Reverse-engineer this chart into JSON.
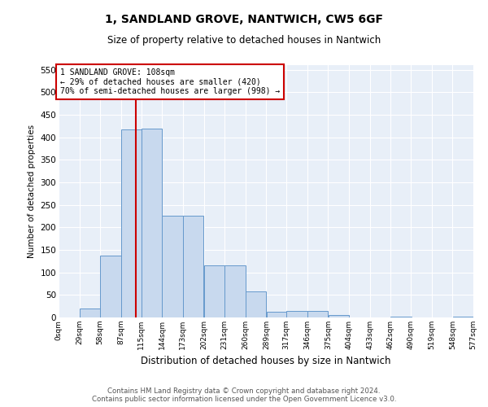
{
  "title": "1, SANDLAND GROVE, NANTWICH, CW5 6GF",
  "subtitle": "Size of property relative to detached houses in Nantwich",
  "xlabel": "Distribution of detached houses by size in Nantwich",
  "ylabel": "Number of detached properties",
  "bar_color": "#c8d9ee",
  "bar_edge_color": "#6699cc",
  "background_color": "#e8eff8",
  "grid_color": "#ffffff",
  "annotation_line_color": "#cc0000",
  "annotation_box_color": "#cc0000",
  "bins": [
    0,
    29,
    58,
    87,
    115,
    144,
    173,
    202,
    231,
    260,
    289,
    317,
    346,
    375,
    404,
    433,
    462,
    490,
    519,
    548,
    577
  ],
  "bin_labels": [
    "0sqm",
    "29sqm",
    "58sqm",
    "87sqm",
    "115sqm",
    "144sqm",
    "173sqm",
    "202sqm",
    "231sqm",
    "260sqm",
    "289sqm",
    "317sqm",
    "346sqm",
    "375sqm",
    "404sqm",
    "433sqm",
    "462sqm",
    "490sqm",
    "519sqm",
    "548sqm",
    "577sqm"
  ],
  "bar_heights": [
    0,
    20,
    137,
    417,
    419,
    225,
    225,
    116,
    116,
    57,
    13,
    14,
    15,
    6,
    0,
    0,
    1,
    0,
    0,
    1
  ],
  "property_size": 108,
  "annotation_text_line1": "1 SANDLAND GROVE: 108sqm",
  "annotation_text_line2": "← 29% of detached houses are smaller (420)",
  "annotation_text_line3": "70% of semi-detached houses are larger (998) →",
  "ylim": [
    0,
    560
  ],
  "yticks": [
    0,
    50,
    100,
    150,
    200,
    250,
    300,
    350,
    400,
    450,
    500,
    550
  ],
  "footer_line1": "Contains HM Land Registry data © Crown copyright and database right 2024.",
  "footer_line2": "Contains public sector information licensed under the Open Government Licence v3.0."
}
